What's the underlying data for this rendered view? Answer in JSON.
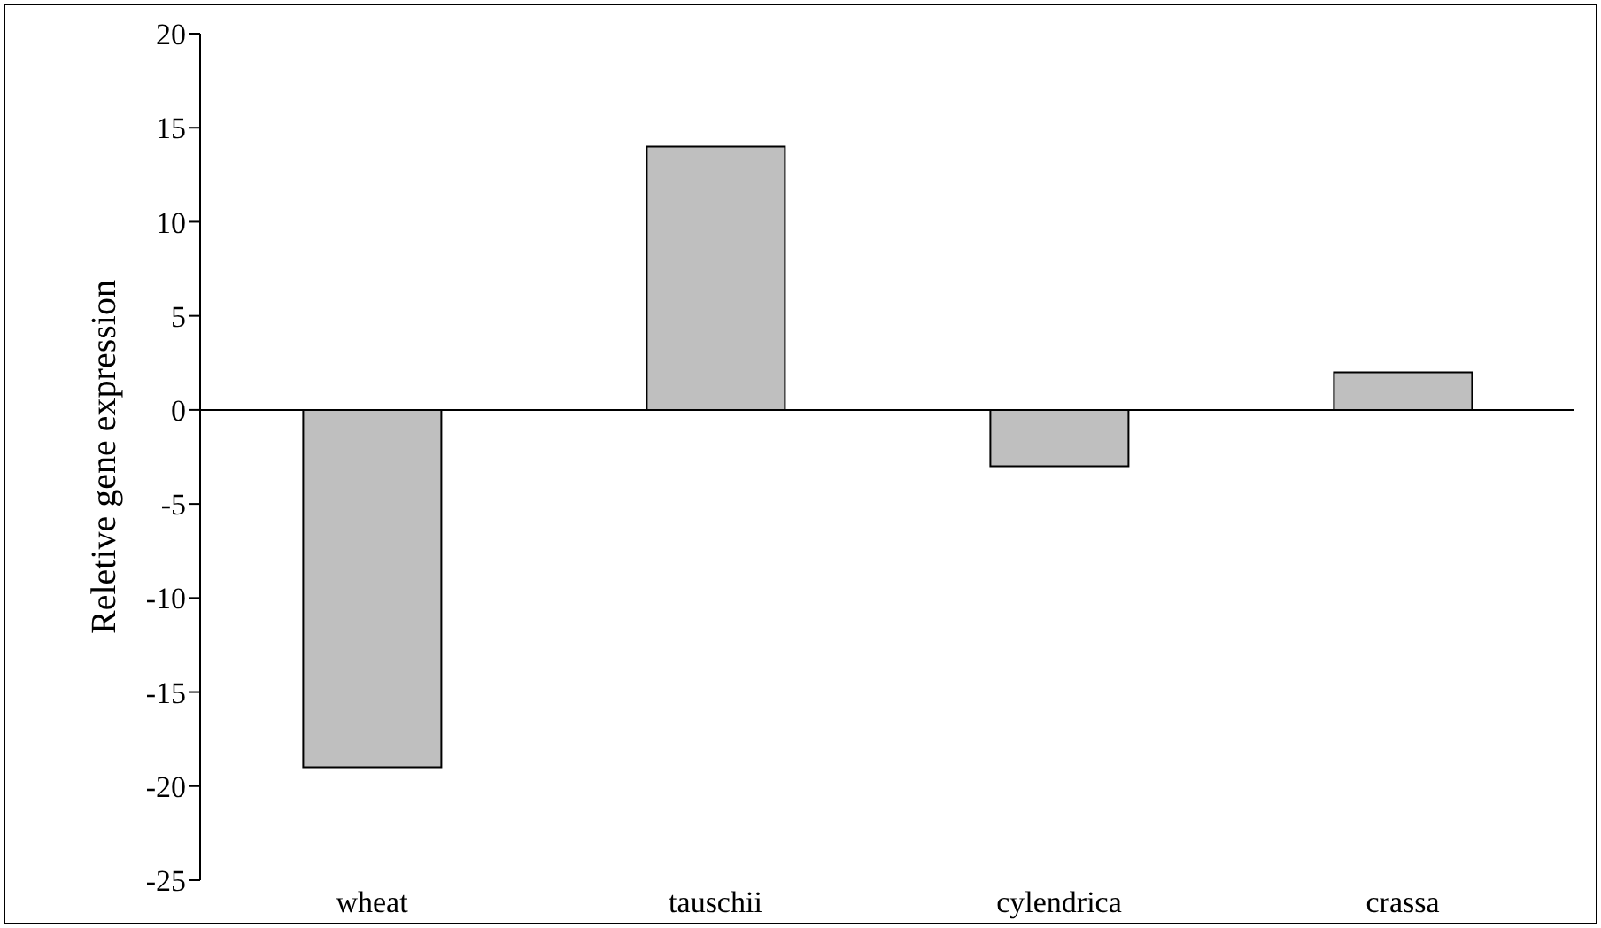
{
  "chart_data": {
    "type": "bar",
    "ylabel": "Reletive gene expression",
    "categories": [
      "wheat",
      "tauschii",
      "cylendrica",
      "crassa"
    ],
    "values": [
      -19,
      14,
      -3,
      2
    ],
    "color": "#bfbfbf",
    "ylim": [
      -25,
      20
    ],
    "yticks": [
      -25,
      -20,
      -15,
      -10,
      -5,
      0,
      5,
      10,
      15,
      20
    ],
    "ref_lines": [
      {
        "axis": "y",
        "value": 0,
        "color": "#000000"
      }
    ]
  }
}
